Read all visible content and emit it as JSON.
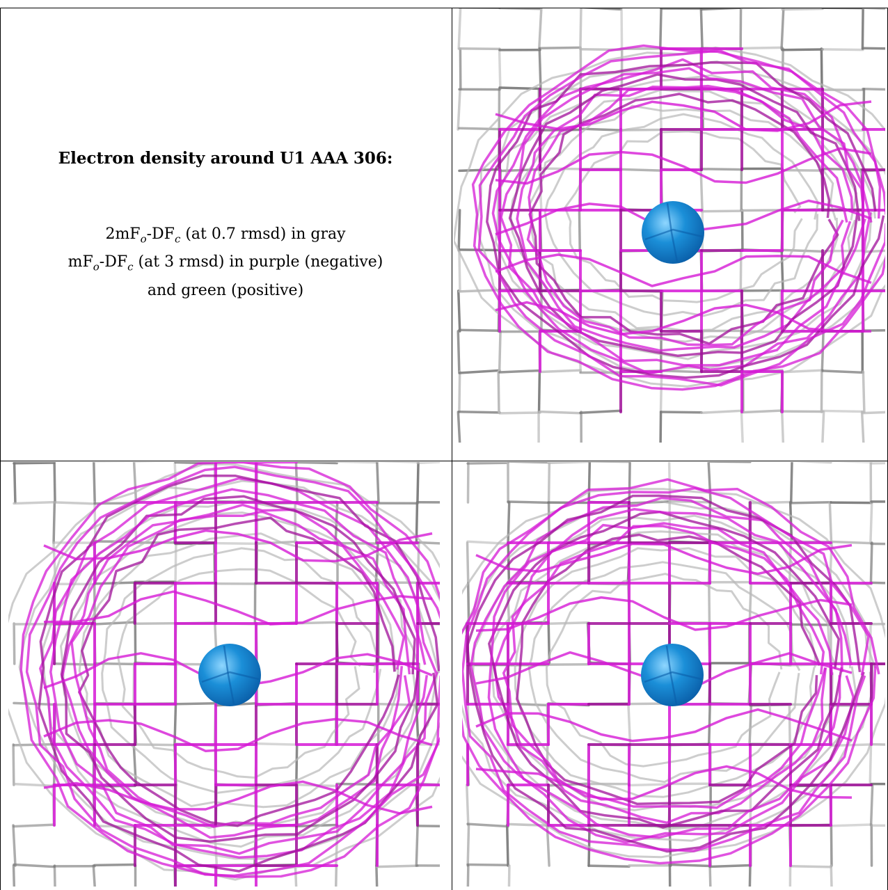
{
  "caption": {
    "title": "Electron density around U1 AAA 306:",
    "line1_prefix": "2mF",
    "line1_sub1": "o",
    "line1_mid": "-DF",
    "line1_sub2": "c",
    "line1_suffix": " (at 0.7 rmsd) in gray",
    "line2_prefix": "mF",
    "line2_sub1": "o",
    "line2_mid": "-DF",
    "line2_sub2": "c",
    "line2_suffix": " (at 3 rmsd) in purple (negative)",
    "line3": "and green (positive)"
  },
  "colors": {
    "gray_mesh": "#b8b8b8",
    "gray_mesh_dark": "#7a7a7a",
    "purple_mesh": "#d61ad6",
    "purple_mesh_dark": "#a0109a",
    "atom": "#1b8fd8",
    "atom_dark": "#0a5ea8",
    "border": "#000000"
  },
  "panels": [
    {
      "name": "view-top-right",
      "atom": "U1"
    },
    {
      "name": "view-bottom-left",
      "atom": "U1"
    },
    {
      "name": "view-bottom-right",
      "atom": "U1"
    }
  ]
}
